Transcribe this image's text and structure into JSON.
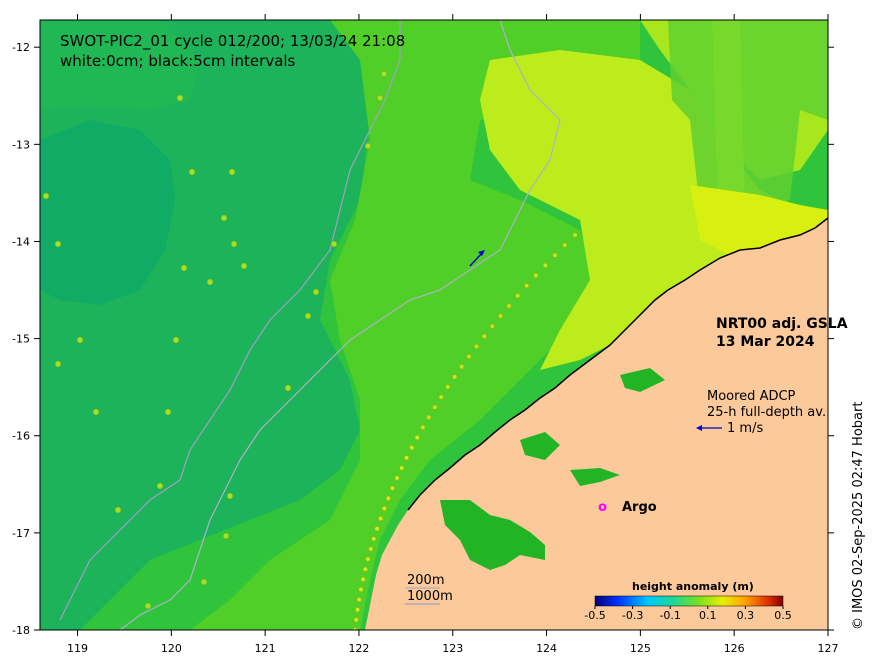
{
  "title_line1": "SWOT-PIC2_01 cycle 012/200; 13/03/24 21:08",
  "title_line2": "white:0cm; black:5cm intervals",
  "product_line1": "NRT00 adj. GSLA",
  "product_line2": "13 Mar 2024",
  "adcp_line1": "Moored ADCP",
  "adcp_line2": "25-h full-depth av.",
  "adcp_scale": "1 m/s",
  "argo_symbol": "o",
  "argo_label": "Argo",
  "isobath_200": "200m",
  "isobath_1000": "1000m",
  "colorbar": {
    "title": "height anomaly (m)",
    "ticks": [
      "-0.5",
      "-0.3",
      "-0.1",
      "0.1",
      "0.3",
      "0.5"
    ]
  },
  "credit": "© IMOS 02-Sep-2025 02:47 Hobart",
  "axes": {
    "x_ticks": [
      "119",
      "120",
      "121",
      "122",
      "123",
      "124",
      "125",
      "126",
      "127"
    ],
    "y_ticks": [
      "-12",
      "-13",
      "-14",
      "-15",
      "-16",
      "-17",
      "-18"
    ]
  },
  "colors": {
    "land": "#fcc99a",
    "sea_mid": "#3cc83c",
    "sea_low": "#18b464",
    "sea_high": "#c8f01e",
    "adcp_arrow": "#0000cc",
    "argo": "#ff00ff"
  }
}
